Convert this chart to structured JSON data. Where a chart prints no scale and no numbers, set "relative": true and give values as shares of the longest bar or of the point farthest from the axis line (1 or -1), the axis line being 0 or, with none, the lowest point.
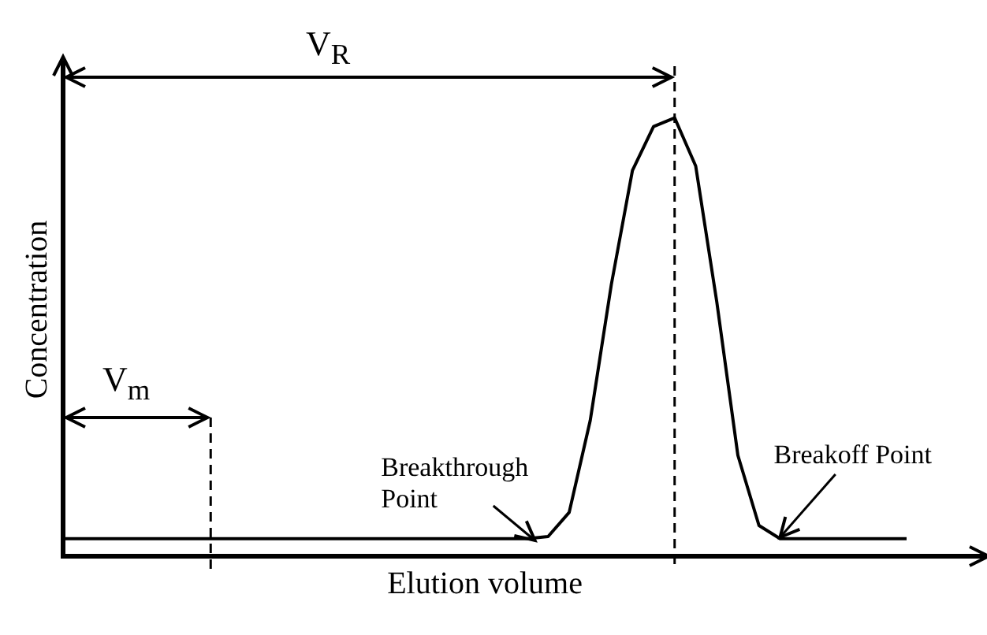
{
  "chart_data": {
    "type": "line",
    "relative": true,
    "xlabel": "Elution volume",
    "ylabel": "Concentration",
    "categories": [
      null,
      null,
      null,
      null,
      null,
      null,
      null,
      null,
      null,
      null,
      null,
      null,
      null,
      null,
      null,
      null,
      null,
      null,
      null,
      null,
      null,
      null,
      null,
      null,
      null,
      null,
      null,
      null,
      null,
      null,
      null,
      null,
      null,
      null,
      null,
      null,
      null,
      null,
      null,
      null,
      null
    ],
    "series": [
      {
        "color": "#000000",
        "values": [
          0.04,
          0.04,
          0.04,
          0.04,
          0.04,
          0.04,
          0.04,
          0.04,
          0.04,
          0.04,
          0.04,
          0.04,
          0.04,
          0.04,
          0.04,
          0.04,
          0.04,
          0.04,
          0.04,
          0.04,
          0.04,
          0.04,
          0.04,
          0.045,
          0.1,
          0.31,
          0.62,
          0.88,
          0.98,
          1.0,
          0.89,
          0.58,
          0.23,
          0.07,
          0.04,
          0.04,
          0.04,
          0.04,
          0.04,
          0.04,
          0.04
        ]
      }
    ],
    "annotations": [
      "V$_{R}$",
      "V$_{m}$",
      "Breakthrough Point",
      "Breakoff Point"
    ],
    "tick_labels": false,
    "marker": "none",
    "line_style": "solid"
  }
}
